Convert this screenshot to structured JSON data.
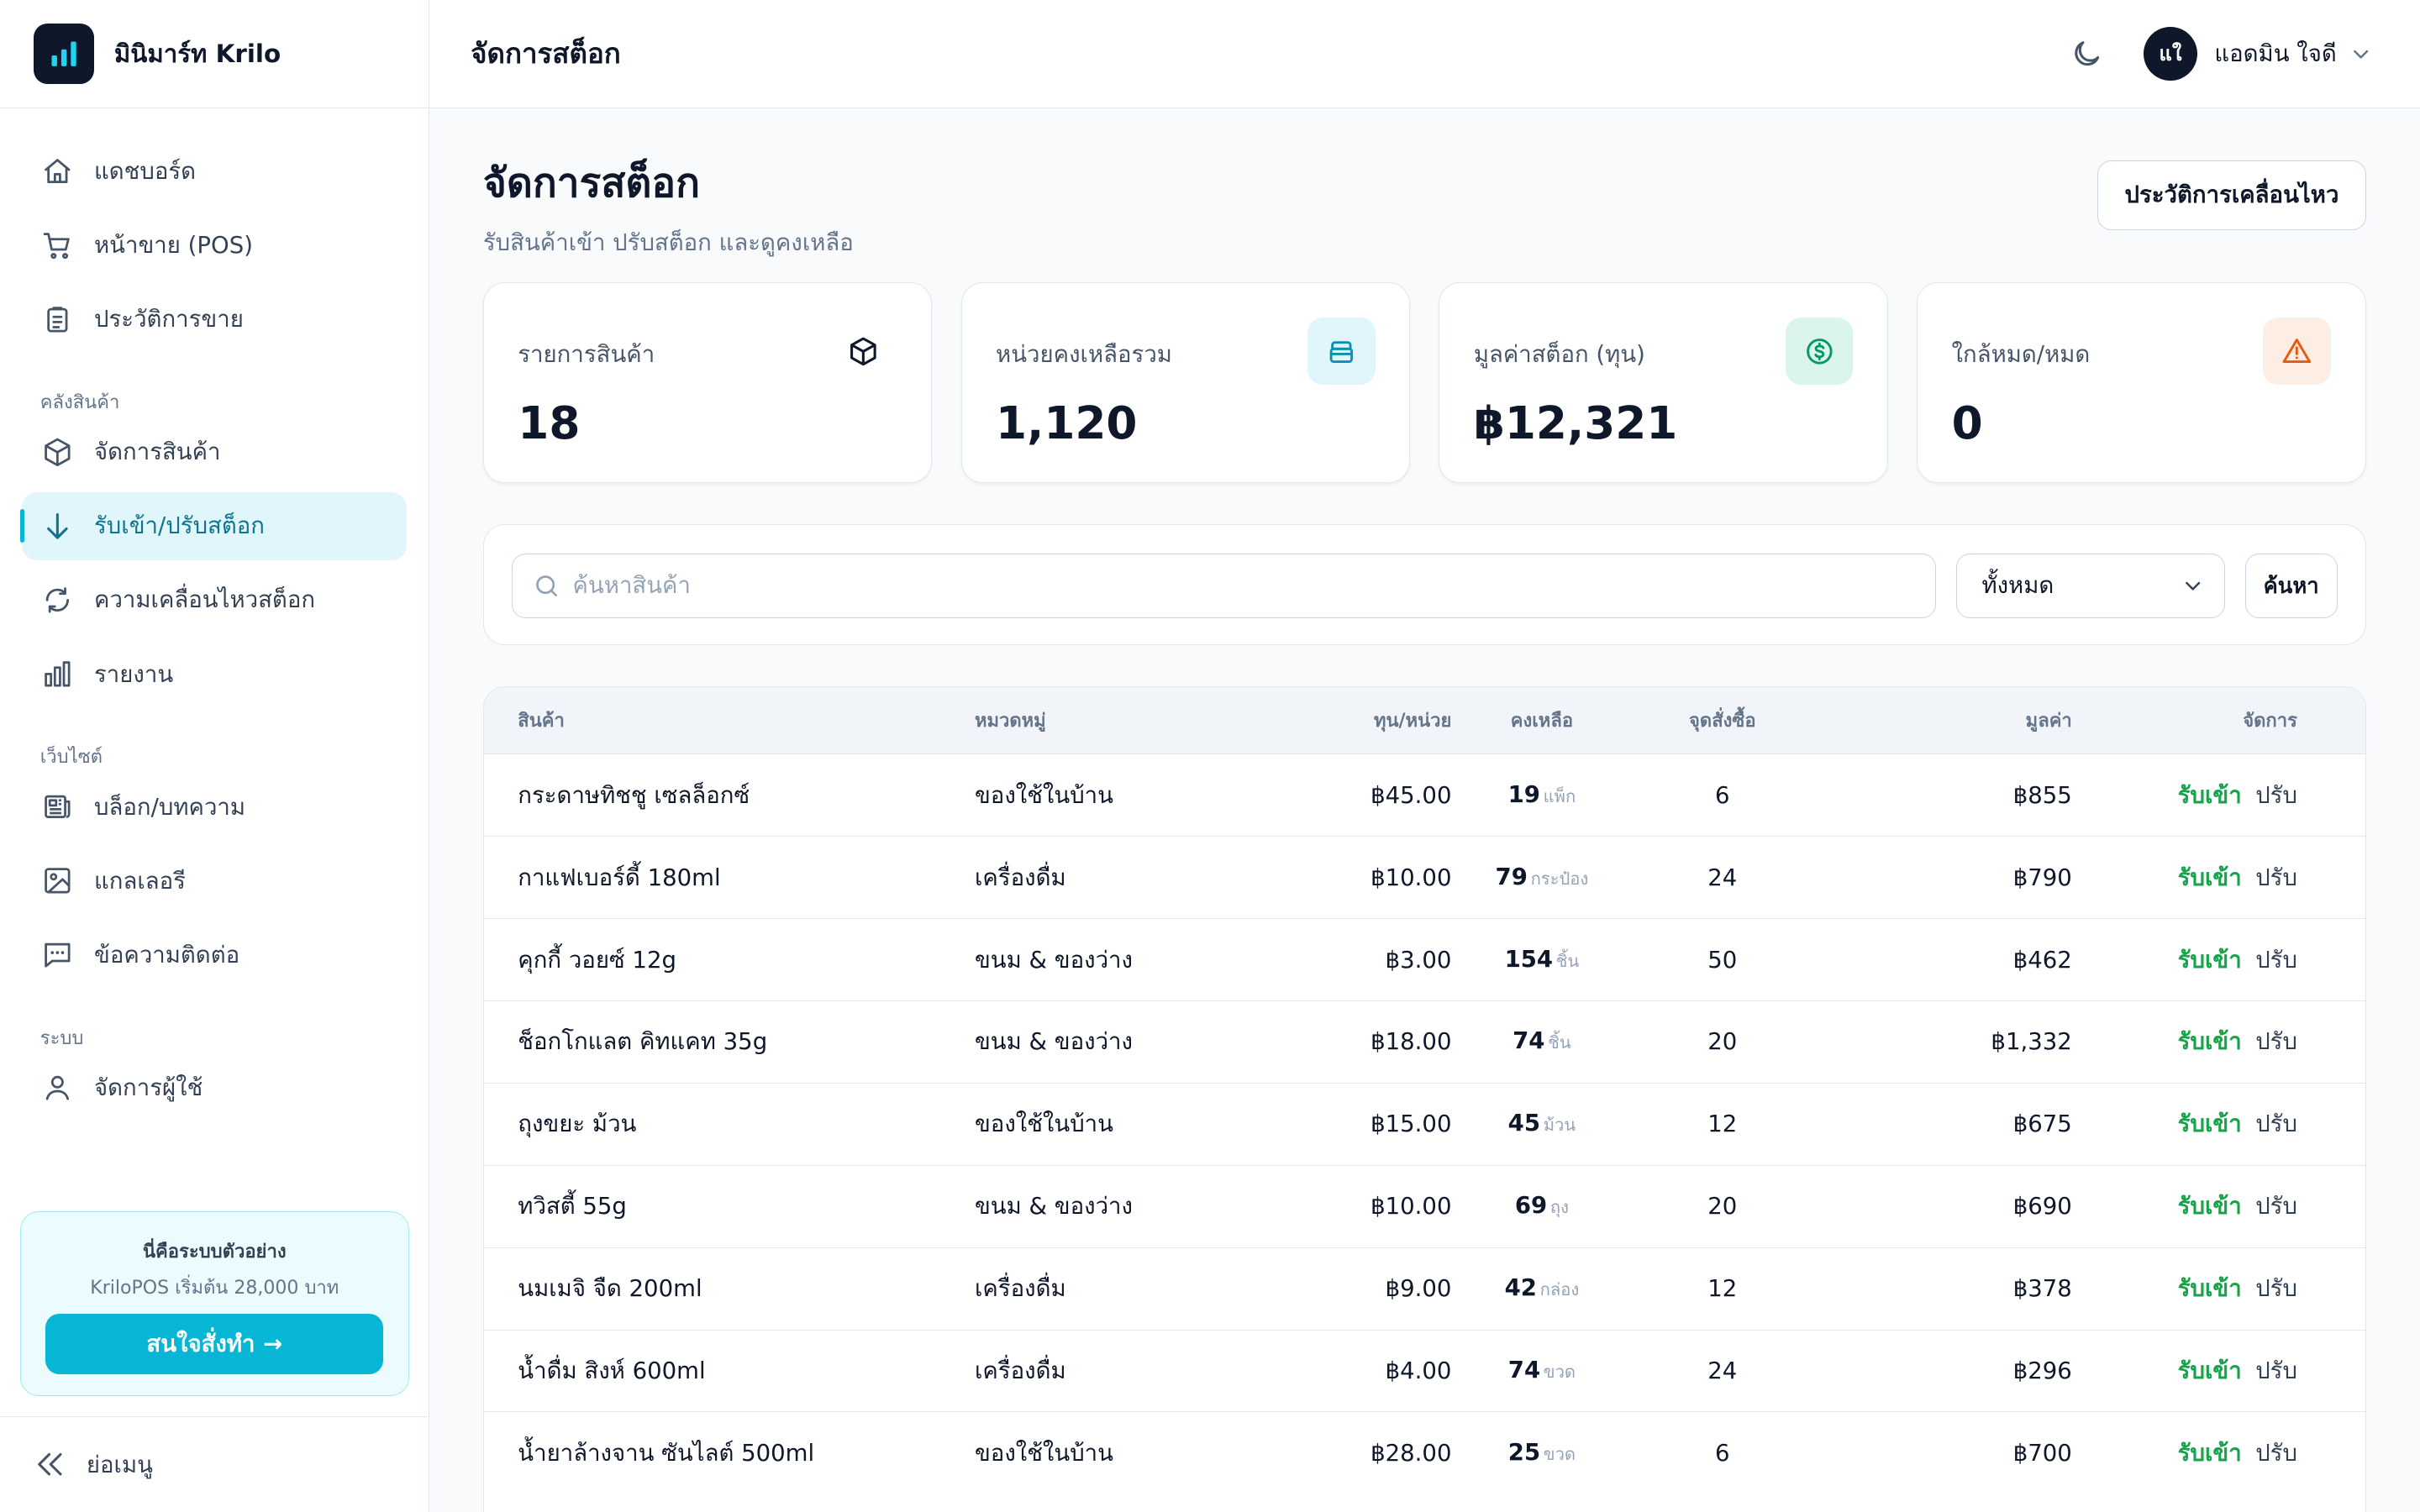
{
  "app": {
    "brand": "มินิมาร์ท Krilo"
  },
  "sidebar": {
    "main_items": [
      {
        "label": "แดชบอร์ด",
        "icon": "home-icon"
      },
      {
        "label": "หน้าขาย (POS)",
        "icon": "cart-icon"
      },
      {
        "label": "ประวัติการขาย",
        "icon": "clipboard-icon"
      }
    ],
    "section_inventory": "คลังสินค้า",
    "inventory_items": [
      {
        "label": "จัดการสินค้า",
        "icon": "box-icon"
      },
      {
        "label": "รับเข้า/ปรับสต็อก",
        "icon": "arrow-down-icon",
        "active": true
      },
      {
        "label": "ความเคลื่อนไหวสต็อก",
        "icon": "refresh-icon"
      },
      {
        "label": "รายงาน",
        "icon": "bar-chart-icon"
      }
    ],
    "section_website": "เว็บไซต์",
    "website_items": [
      {
        "label": "บล็อก/บทความ",
        "icon": "newspaper-icon"
      },
      {
        "label": "แกลเลอรี",
        "icon": "image-icon"
      },
      {
        "label": "ข้อความติดต่อ",
        "icon": "message-icon"
      }
    ],
    "section_system": "ระบบ",
    "system_items": [
      {
        "label": "จัดการผู้ใช้",
        "icon": "user-icon"
      }
    ],
    "promo": {
      "title": "นี่คือระบบตัวอย่าง",
      "subtitle": "KriloPOS เริ่มต้น 28,000 บาท",
      "button": "สนใจสั่งทำ →"
    },
    "collapse_label": "ย่อเมนู"
  },
  "topbar": {
    "title": "จัดการสต็อก",
    "user_initials": "แใ",
    "user_name": "แอดมิน ใจดี"
  },
  "page": {
    "title": "จัดการสต็อก",
    "subtitle": "รับสินค้าเข้า ปรับสต็อก และดูคงเหลือ",
    "history_button": "ประวัติการเคลื่อนไหว"
  },
  "stats": [
    {
      "label": "รายการสินค้า",
      "value": "18",
      "icon": "box-icon",
      "accent": "#0f172a",
      "bg": "#ffffff"
    },
    {
      "label": "หน่วยคงเหลือรวม",
      "value": "1,120",
      "icon": "layers-icon",
      "accent": "#0891b2",
      "bg": "#e0f6fb"
    },
    {
      "label": "มูลค่าสต็อก (ทุน)",
      "value": "฿12,321",
      "icon": "dollar-icon",
      "accent": "#059669",
      "bg": "#dcf5ea"
    },
    {
      "label": "ใกล้หมด/หมด",
      "value": "0",
      "icon": "warning-icon",
      "accent": "#ea580c",
      "bg": "#fdeee3"
    }
  ],
  "search": {
    "placeholder": "ค้นหาสินค้า",
    "filter_value": "ทั้งหมด",
    "button": "ค้นหา"
  },
  "table": {
    "headers": [
      "สินค้า",
      "หมวดหมู่",
      "ทุน/หน่วย",
      "คงเหลือ",
      "จุดสั่งซื้อ",
      "มูลค่า",
      "จัดการ"
    ],
    "action_in": "รับเข้า",
    "action_adjust": "ปรับ",
    "rows": [
      {
        "name": "กระดาษทิชชู เซลล็อกซ์",
        "category": "ของใช้ในบ้าน",
        "cost": "฿45.00",
        "qty": "19",
        "unit": "แพ็ก",
        "reorder": "6",
        "value": "฿855"
      },
      {
        "name": "กาแฟเบอร์ดี้ 180ml",
        "category": "เครื่องดื่ม",
        "cost": "฿10.00",
        "qty": "79",
        "unit": "กระป๋อง",
        "reorder": "24",
        "value": "฿790"
      },
      {
        "name": "คุกกี้ วอยซ์ 12g",
        "category": "ขนม & ของว่าง",
        "cost": "฿3.00",
        "qty": "154",
        "unit": "ชิ้น",
        "reorder": "50",
        "value": "฿462"
      },
      {
        "name": "ช็อกโกแลต คิทแคท 35g",
        "category": "ขนม & ของว่าง",
        "cost": "฿18.00",
        "qty": "74",
        "unit": "ชิ้น",
        "reorder": "20",
        "value": "฿1,332"
      },
      {
        "name": "ถุงขยะ ม้วน",
        "category": "ของใช้ในบ้าน",
        "cost": "฿15.00",
        "qty": "45",
        "unit": "ม้วน",
        "reorder": "12",
        "value": "฿675"
      },
      {
        "name": "ทวิสตี้ 55g",
        "category": "ขนม & ของว่าง",
        "cost": "฿10.00",
        "qty": "69",
        "unit": "ถุง",
        "reorder": "20",
        "value": "฿690"
      },
      {
        "name": "นมเมจิ จืด 200ml",
        "category": "เครื่องดื่ม",
        "cost": "฿9.00",
        "qty": "42",
        "unit": "กล่อง",
        "reorder": "12",
        "value": "฿378"
      },
      {
        "name": "น้ำดื่ม สิงห์ 600ml",
        "category": "เครื่องดื่ม",
        "cost": "฿4.00",
        "qty": "74",
        "unit": "ขวด",
        "reorder": "24",
        "value": "฿296"
      },
      {
        "name": "น้ำยาล้างจาน ซันไลต์ 500ml",
        "category": "ของใช้ในบ้าน",
        "cost": "฿28.00",
        "qty": "25",
        "unit": "ขวด",
        "reorder": "6",
        "value": "฿700"
      }
    ]
  }
}
